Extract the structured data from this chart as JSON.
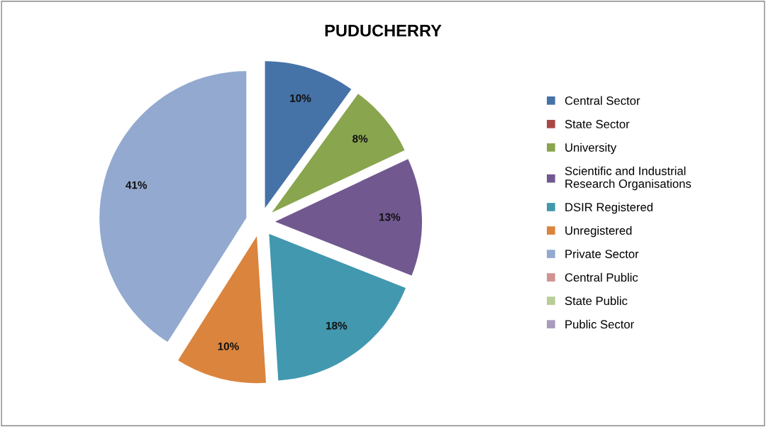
{
  "chart_data": {
    "type": "pie",
    "title": "PUDUCHERRY",
    "categories": [
      "Central Sector",
      "State Sector",
      "University",
      "Scientific and Industrial Research Organisations",
      "DSIR Registered",
      "Unregistered",
      "Private Sector",
      "Central Public",
      "State Public",
      "Public Sector"
    ],
    "values": [
      10,
      0,
      8,
      13,
      18,
      10,
      41,
      0,
      0,
      0
    ],
    "value_labels": [
      "10%",
      null,
      "8%",
      "13%",
      "18%",
      "10%",
      "41%",
      null,
      null,
      null
    ],
    "colors": [
      "#4572a7",
      "#aa4643",
      "#89a54e",
      "#71588f",
      "#4198af",
      "#db843d",
      "#93a9cf",
      "#d19392",
      "#b9cd96",
      "#a99bbd"
    ],
    "legend": "right"
  }
}
